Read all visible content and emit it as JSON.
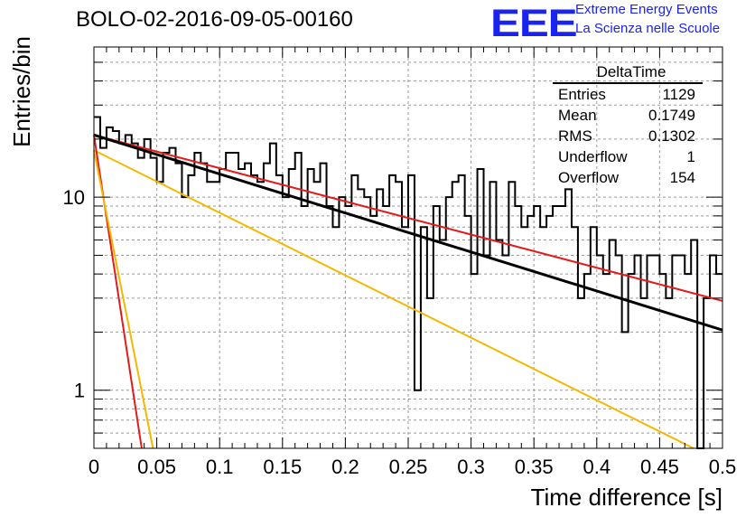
{
  "title": "BOLO-02-2016-09-05-00160",
  "logo": {
    "mark": "EEE",
    "line1": "Extreme Energy Events",
    "line2": "La Scienza nelle Scuole"
  },
  "stats": {
    "title": "DeltaTime",
    "rows": [
      {
        "label": "Entries",
        "value": "1129"
      },
      {
        "label": "Mean",
        "value": "0.1749"
      },
      {
        "label": "RMS",
        "value": "0.1302"
      },
      {
        "label": "Underflow",
        "value": "1"
      },
      {
        "label": "Overflow",
        "value": "154"
      }
    ]
  },
  "chart_data": {
    "type": "histogram",
    "xlabel": "Time difference [s]",
    "ylabel": "Entries/bin",
    "xlim": [
      0,
      0.5
    ],
    "ylim": [
      0.5,
      60
    ],
    "yscale": "log",
    "grid": true,
    "xticks": [
      "0",
      "0.05",
      "0.1",
      "0.15",
      "0.2",
      "0.25",
      "0.3",
      "0.35",
      "0.4",
      "0.45",
      "0.5"
    ],
    "yticks": [
      "1",
      "10"
    ],
    "bin_width": 0.005,
    "bin_contents": [
      26,
      18,
      23,
      22,
      19,
      21,
      19,
      16,
      20,
      16,
      12,
      17,
      18,
      15,
      10,
      13,
      17,
      15,
      12,
      12,
      14,
      17,
      17,
      14,
      15,
      13,
      12,
      15,
      19,
      13,
      10,
      14,
      17,
      9,
      14,
      12,
      15,
      9,
      7,
      10,
      9,
      13,
      11,
      10,
      8,
      11,
      9,
      13,
      12,
      7,
      13,
      1,
      7,
      3,
      9,
      6,
      10,
      12,
      13,
      8,
      4,
      14,
      5,
      12,
      6,
      5,
      12,
      9,
      7,
      8,
      9,
      7,
      8,
      9,
      9,
      11,
      7,
      3,
      4,
      7,
      5,
      4,
      6,
      5,
      2,
      4,
      5,
      3,
      5,
      5,
      4,
      3,
      5,
      5,
      4,
      6,
      0.5,
      3,
      5,
      4
    ],
    "fits": [
      {
        "color": "#e41a1c",
        "points": [
          [
            0.0,
            21
          ],
          [
            0.5,
            2.9
          ]
        ]
      },
      {
        "color": "#f5b800",
        "points": [
          [
            0.0,
            17.5
          ],
          [
            0.477,
            0.5
          ]
        ]
      },
      {
        "color": "#000000",
        "points": [
          [
            0.0,
            21
          ],
          [
            0.5,
            2.05
          ]
        ]
      },
      {
        "color": "#e41a1c",
        "points": [
          [
            0.0,
            21
          ],
          [
            0.038,
            0.5
          ]
        ]
      },
      {
        "color": "#f5b800",
        "points": [
          [
            0.0,
            17.5
          ],
          [
            0.047,
            0.5
          ]
        ]
      }
    ]
  }
}
